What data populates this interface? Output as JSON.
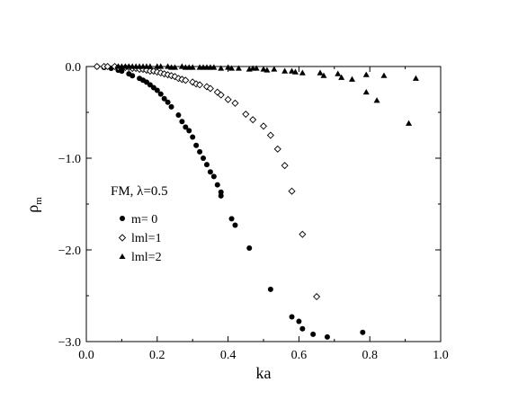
{
  "chart_data": {
    "type": "scatter",
    "title": "",
    "xlabel": "ka",
    "ylabel": "ρ",
    "ylabel_sub": "m",
    "xlim": [
      0.0,
      1.0
    ],
    "ylim": [
      -3.0,
      0.0
    ],
    "x_ticks": [
      0.0,
      0.2,
      0.4,
      0.6,
      0.8,
      1.0
    ],
    "x_tick_labels": [
      "0.0",
      "0.2",
      "0.4",
      "0.6",
      "0.8",
      "1.0"
    ],
    "y_ticks": [
      0.0,
      -1.0,
      -2.0,
      -3.0
    ],
    "y_tick_labels": [
      "0.0",
      "−1.0",
      "−2.0",
      "−3.0"
    ],
    "grid": false,
    "legend_position": "left-middle",
    "annotation": "FM, λ=0.5",
    "series": [
      {
        "name": "m= 0",
        "marker": "filled-circle",
        "points": [
          [
            0.03,
            0.0
          ],
          [
            0.05,
            -0.01
          ],
          [
            0.07,
            -0.02
          ],
          [
            0.09,
            -0.04
          ],
          [
            0.1,
            -0.05
          ],
          [
            0.12,
            -0.08
          ],
          [
            0.13,
            -0.1
          ],
          [
            0.15,
            -0.13
          ],
          [
            0.16,
            -0.15
          ],
          [
            0.17,
            -0.17
          ],
          [
            0.18,
            -0.2
          ],
          [
            0.19,
            -0.23
          ],
          [
            0.2,
            -0.26
          ],
          [
            0.21,
            -0.3
          ],
          [
            0.22,
            -0.35
          ],
          [
            0.23,
            -0.39
          ],
          [
            0.24,
            -0.44
          ],
          [
            0.26,
            -0.53
          ],
          [
            0.27,
            -0.6
          ],
          [
            0.28,
            -0.66
          ],
          [
            0.29,
            -0.7
          ],
          [
            0.3,
            -0.77
          ],
          [
            0.31,
            -0.86
          ],
          [
            0.32,
            -0.93
          ],
          [
            0.33,
            -1.0
          ],
          [
            0.34,
            -1.07
          ],
          [
            0.35,
            -1.15
          ],
          [
            0.36,
            -1.2
          ],
          [
            0.37,
            -1.29
          ],
          [
            0.38,
            -1.37
          ],
          [
            0.38,
            -1.41
          ],
          [
            0.41,
            -1.66
          ],
          [
            0.42,
            -1.73
          ],
          [
            0.46,
            -1.98
          ],
          [
            0.52,
            -2.43
          ],
          [
            0.58,
            -2.73
          ],
          [
            0.6,
            -2.78
          ],
          [
            0.61,
            -2.86
          ],
          [
            0.64,
            -2.92
          ],
          [
            0.68,
            -2.95
          ],
          [
            0.78,
            -2.9
          ]
        ]
      },
      {
        "name": "lml=1",
        "marker": "open-diamond",
        "points": [
          [
            0.03,
            0.0
          ],
          [
            0.05,
            0.0
          ],
          [
            0.06,
            0.0
          ],
          [
            0.08,
            0.0
          ],
          [
            0.09,
            -0.01
          ],
          [
            0.11,
            -0.01
          ],
          [
            0.12,
            -0.01
          ],
          [
            0.13,
            -0.02
          ],
          [
            0.14,
            -0.02
          ],
          [
            0.15,
            -0.03
          ],
          [
            0.16,
            -0.03
          ],
          [
            0.17,
            -0.04
          ],
          [
            0.18,
            -0.05
          ],
          [
            0.19,
            -0.05
          ],
          [
            0.2,
            -0.06
          ],
          [
            0.21,
            -0.07
          ],
          [
            0.22,
            -0.08
          ],
          [
            0.23,
            -0.09
          ],
          [
            0.24,
            -0.1
          ],
          [
            0.25,
            -0.11
          ],
          [
            0.26,
            -0.13
          ],
          [
            0.27,
            -0.14
          ],
          [
            0.28,
            -0.15
          ],
          [
            0.3,
            -0.17
          ],
          [
            0.31,
            -0.19
          ],
          [
            0.32,
            -0.2
          ],
          [
            0.34,
            -0.22
          ],
          [
            0.35,
            -0.24
          ],
          [
            0.37,
            -0.28
          ],
          [
            0.38,
            -0.31
          ],
          [
            0.4,
            -0.36
          ],
          [
            0.42,
            -0.4
          ],
          [
            0.45,
            -0.52
          ],
          [
            0.47,
            -0.58
          ],
          [
            0.5,
            -0.65
          ],
          [
            0.52,
            -0.75
          ],
          [
            0.54,
            -0.9
          ],
          [
            0.56,
            -1.08
          ],
          [
            0.58,
            -1.36
          ],
          [
            0.61,
            -1.83
          ],
          [
            0.65,
            -2.51
          ]
        ]
      },
      {
        "name": "lml=2",
        "marker": "filled-triangle",
        "points": [
          [
            0.09,
            0.0
          ],
          [
            0.1,
            0.0
          ],
          [
            0.11,
            0.0
          ],
          [
            0.12,
            0.0
          ],
          [
            0.13,
            0.0
          ],
          [
            0.14,
            0.0
          ],
          [
            0.15,
            0.0
          ],
          [
            0.16,
            0.0
          ],
          [
            0.17,
            0.0
          ],
          [
            0.18,
            0.0
          ],
          [
            0.2,
            0.0
          ],
          [
            0.21,
            0.0
          ],
          [
            0.23,
            0.0
          ],
          [
            0.24,
            -0.01
          ],
          [
            0.25,
            -0.01
          ],
          [
            0.27,
            0.0
          ],
          [
            0.28,
            -0.01
          ],
          [
            0.29,
            -0.01
          ],
          [
            0.3,
            -0.01
          ],
          [
            0.32,
            -0.01
          ],
          [
            0.33,
            -0.01
          ],
          [
            0.34,
            -0.01
          ],
          [
            0.35,
            -0.01
          ],
          [
            0.36,
            -0.01
          ],
          [
            0.38,
            -0.02
          ],
          [
            0.4,
            -0.01
          ],
          [
            0.41,
            -0.02
          ],
          [
            0.43,
            -0.02
          ],
          [
            0.46,
            -0.03
          ],
          [
            0.47,
            -0.02
          ],
          [
            0.48,
            -0.02
          ],
          [
            0.5,
            -0.03
          ],
          [
            0.51,
            -0.04
          ],
          [
            0.53,
            -0.03
          ],
          [
            0.56,
            -0.05
          ],
          [
            0.58,
            -0.05
          ],
          [
            0.59,
            -0.06
          ],
          [
            0.61,
            -0.07
          ],
          [
            0.66,
            -0.07
          ],
          [
            0.67,
            -0.1
          ],
          [
            0.71,
            -0.08
          ],
          [
            0.72,
            -0.12
          ],
          [
            0.75,
            -0.14
          ],
          [
            0.79,
            -0.09
          ],
          [
            0.79,
            -0.28
          ],
          [
            0.82,
            -0.37
          ],
          [
            0.84,
            -0.1
          ],
          [
            0.91,
            -0.62
          ],
          [
            0.93,
            -0.13
          ]
        ]
      }
    ]
  }
}
